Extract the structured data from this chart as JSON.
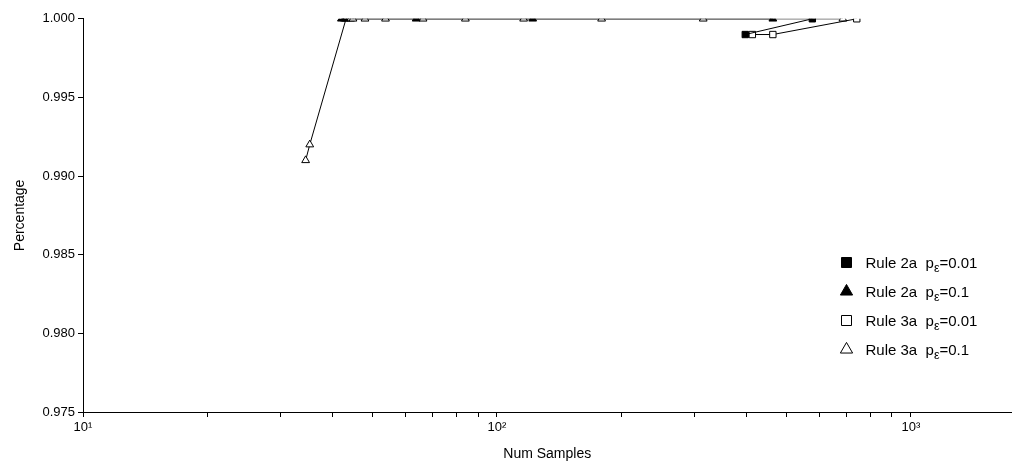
{
  "chart_data": {
    "type": "line",
    "xlabel": "Num Samples",
    "ylabel": "Percentage",
    "log": "x",
    "xlim": [
      10,
      1750
    ],
    "ylim": [
      0.975,
      1.0
    ],
    "xticks": [
      {
        "value": 10,
        "label": "10¹"
      },
      {
        "value": 20,
        "label": null
      },
      {
        "value": 30,
        "label": null
      },
      {
        "value": 40,
        "label": null
      },
      {
        "value": 50,
        "label": null
      },
      {
        "value": 60,
        "label": null
      },
      {
        "value": 70,
        "label": null
      },
      {
        "value": 80,
        "label": null
      },
      {
        "value": 90,
        "label": null
      },
      {
        "value": 100,
        "label": "10²"
      },
      {
        "value": 200,
        "label": null
      },
      {
        "value": 300,
        "label": null
      },
      {
        "value": 400,
        "label": null
      },
      {
        "value": 500,
        "label": null
      },
      {
        "value": 600,
        "label": null
      },
      {
        "value": 700,
        "label": null
      },
      {
        "value": 800,
        "label": null
      },
      {
        "value": 900,
        "label": null
      },
      {
        "value": 1000,
        "label": "10³"
      }
    ],
    "yticks": [
      {
        "value": 0.975,
        "label": "0.975"
      },
      {
        "value": 0.98,
        "label": "0.980"
      },
      {
        "value": 0.985,
        "label": "0.985"
      },
      {
        "value": 0.99,
        "label": "0.990"
      },
      {
        "value": 0.995,
        "label": "0.995"
      },
      {
        "value": 1.0,
        "label": "1.000"
      }
    ],
    "grid": false,
    "legend": "bottom right",
    "line_style": "solid",
    "series": [
      {
        "name": "Rule 2a  p$_{ε}$=0.01",
        "color": "#000000",
        "marker": "square",
        "x": [
          398,
          578
        ],
        "values": [
          0.999,
          1.0
        ],
        "colors": [
          "#000000",
          "#000000"
        ]
      },
      {
        "name": "Rule 2a  p$_{ε}$=0.1",
        "color": "#000000",
        "marker": "triangle",
        "x": [
          42.1,
          42.8,
          63.8,
          122,
          464
        ],
        "values": [
          1.0,
          1.0,
          1.0,
          1.0,
          1.0
        ],
        "colors": [
          "#000000",
          "#000000",
          "#000000",
          "#000000",
          "#000000"
        ]
      },
      {
        "name": "Rule 3a  p$_{ε}$=0.01",
        "color": "#000000",
        "marker": "square",
        "x": [
          414,
          464,
          740
        ],
        "values": [
          0.999,
          0.999,
          1.0
        ],
        "colors": [
          "#ffffff",
          "#ffffff",
          "#ffffff"
        ]
      },
      {
        "name": "Rule 3a  p$_{ε}$=0.1",
        "color": "#000000",
        "marker": "triangle",
        "x": [
          34.5,
          35.3,
          43.2,
          44.3,
          44.9,
          48,
          53.8,
          66.3,
          83.9,
          116,
          179,
          315,
          685
        ],
        "values": [
          0.991,
          0.992,
          1.0,
          1.0,
          1.0,
          1.0,
          1.0,
          1.0,
          1.0,
          1.0,
          1.0,
          1.0,
          1.0
        ],
        "colors": [
          "#ffffff",
          "#ffffff",
          "#ffffff",
          "#ffffff",
          "#ffffff",
          "#ffffff",
          "#ffffff",
          "#ffffff",
          "#ffffff",
          "#ffffff",
          "#ffffff",
          "#ffffff",
          "#ffffff"
        ]
      }
    ]
  }
}
